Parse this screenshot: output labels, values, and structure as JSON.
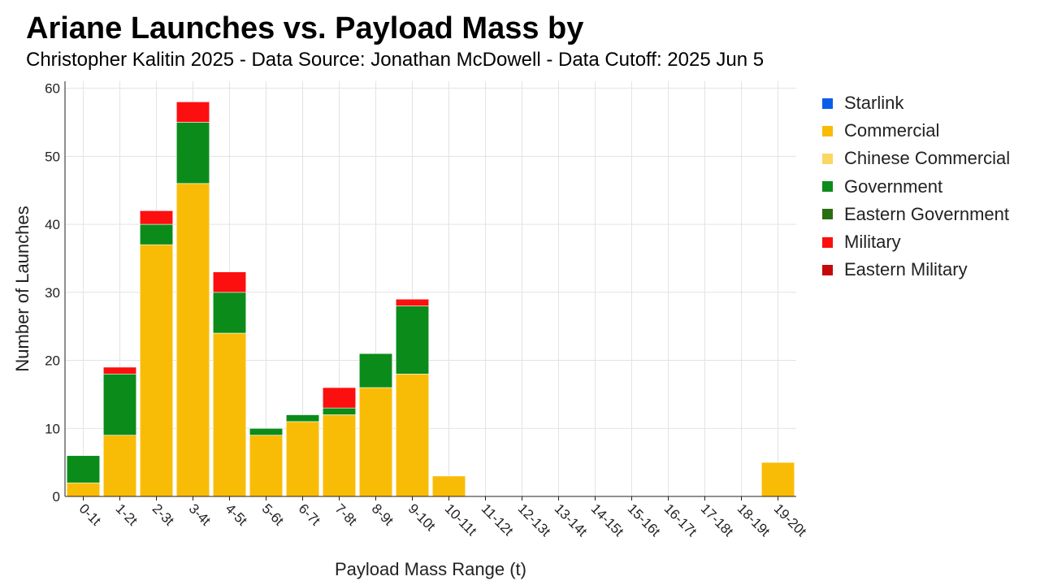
{
  "title": "Ariane Launches vs. Payload Mass by",
  "subtitle": "Christopher Kalitin 2025 - Data Source: Jonathan McDowell - Data Cutoff: 2025 Jun 5",
  "chart_data": {
    "type": "bar",
    "stacked": true,
    "title": "Ariane Launches vs. Payload Mass by",
    "xlabel": "Payload Mass Range (t)",
    "ylabel": "Number of Launches",
    "ylim": [
      0,
      60
    ],
    "yticks": [
      0,
      10,
      20,
      30,
      40,
      50,
      60
    ],
    "grid": true,
    "legend_position": "right",
    "categories": [
      "0-1t",
      "1-2t",
      "2-3t",
      "3-4t",
      "4-5t",
      "5-6t",
      "6-7t",
      "7-8t",
      "8-9t",
      "9-10t",
      "10-11t",
      "11-12t",
      "12-13t",
      "13-14t",
      "14-15t",
      "15-16t",
      "16-17t",
      "17-18t",
      "18-19t",
      "19-20t"
    ],
    "series": [
      {
        "name": "Starlink",
        "color": "#0a5fe8",
        "values": [
          0,
          0,
          0,
          0,
          0,
          0,
          0,
          0,
          0,
          0,
          0,
          0,
          0,
          0,
          0,
          0,
          0,
          0,
          0,
          0
        ]
      },
      {
        "name": "Commercial",
        "color": "#f9bc06",
        "values": [
          2,
          9,
          37,
          46,
          24,
          9,
          11,
          12,
          16,
          18,
          3,
          0,
          0,
          0,
          0,
          0,
          0,
          0,
          0,
          5
        ]
      },
      {
        "name": "Chinese Commercial",
        "color": "#f9d762",
        "values": [
          0,
          0,
          0,
          0,
          0,
          0,
          0,
          0,
          0,
          0,
          0,
          0,
          0,
          0,
          0,
          0,
          0,
          0,
          0,
          0
        ]
      },
      {
        "name": "Government",
        "color": "#0b8c1a",
        "values": [
          4,
          9,
          3,
          9,
          6,
          1,
          1,
          1,
          5,
          10,
          0,
          0,
          0,
          0,
          0,
          0,
          0,
          0,
          0,
          0
        ]
      },
      {
        "name": "Eastern Government",
        "color": "#2a6e12",
        "values": [
          0,
          0,
          0,
          0,
          0,
          0,
          0,
          0,
          0,
          0,
          0,
          0,
          0,
          0,
          0,
          0,
          0,
          0,
          0,
          0
        ]
      },
      {
        "name": "Military",
        "color": "#fc0f0f",
        "values": [
          0,
          1,
          2,
          3,
          3,
          0,
          0,
          3,
          0,
          1,
          0,
          0,
          0,
          0,
          0,
          0,
          0,
          0,
          0,
          0
        ]
      },
      {
        "name": "Eastern Military",
        "color": "#c50808",
        "values": [
          0,
          0,
          0,
          0,
          0,
          0,
          0,
          0,
          0,
          0,
          0,
          0,
          0,
          0,
          0,
          0,
          0,
          0,
          0,
          0
        ]
      }
    ]
  }
}
